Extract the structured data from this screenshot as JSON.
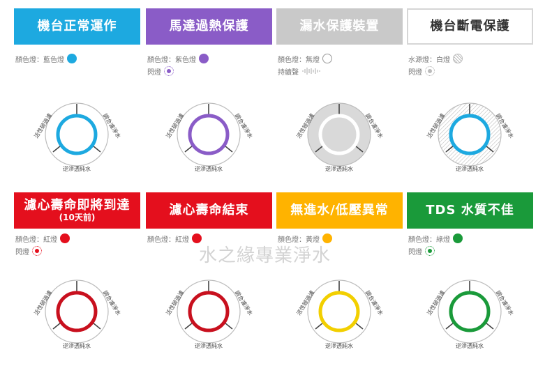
{
  "labels": {
    "left": "活性碳過濾",
    "right": "調合濾淨水",
    "bottom": "逆滲透純水"
  },
  "watermark": "水之緣專業淨水",
  "cards": [
    {
      "title": "機台正常運作",
      "color": "#1da9e0",
      "info": [
        {
          "text": "顏色燈：藍色燈",
          "indicator": "dot",
          "color": "#1da9e0"
        }
      ]
    },
    {
      "title": "馬達過熱保護",
      "color": "#8a5cc7",
      "info": [
        {
          "text": "顏色燈：紫色燈",
          "indicator": "dot",
          "color": "#8a5cc7"
        },
        {
          "text": "閃燈",
          "indicator": "flash",
          "color": "#8a5cc7"
        }
      ]
    },
    {
      "title": "漏水保護裝置",
      "color": "#c9c9c9",
      "info": [
        {
          "text": "顏色燈：無燈",
          "indicator": "ring",
          "color": "#aaaaaa"
        },
        {
          "text": "持續聲",
          "indicator": "wave",
          "color": "#aaaaaa"
        }
      ]
    },
    {
      "title": "機台斷電保護",
      "color": "#ffffff",
      "info": [
        {
          "text": "水源燈：白燈",
          "indicator": "hatch",
          "color": "#bbbbbb"
        },
        {
          "text": "閃燈",
          "indicator": "flash",
          "color": "#bbbbbb"
        }
      ]
    },
    {
      "title": "濾心壽命即將到達",
      "subtitle": "(10天前)",
      "color": "#e40f1d",
      "info": [
        {
          "text": "顏色燈：紅燈",
          "indicator": "dot",
          "color": "#e40f1d"
        },
        {
          "text": "閃燈",
          "indicator": "flash",
          "color": "#e40f1d"
        }
      ]
    },
    {
      "title": "濾心壽命結束",
      "color": "#e40f1d",
      "info": [
        {
          "text": "顏色燈：紅燈",
          "indicator": "dot",
          "color": "#e40f1d"
        }
      ]
    },
    {
      "title": "無進水/低壓異常",
      "color": "#ffb300",
      "info": [
        {
          "text": "顏色燈：黃燈",
          "indicator": "dot",
          "color": "#ffb300"
        }
      ]
    },
    {
      "title": "TDS 水質不佳",
      "color": "#1a9a3a",
      "info": [
        {
          "text": "顏色燈：綠燈",
          "indicator": "dot",
          "color": "#1a9a3a"
        },
        {
          "text": "閃燈",
          "indicator": "flash",
          "color": "#1a9a3a"
        }
      ]
    }
  ]
}
